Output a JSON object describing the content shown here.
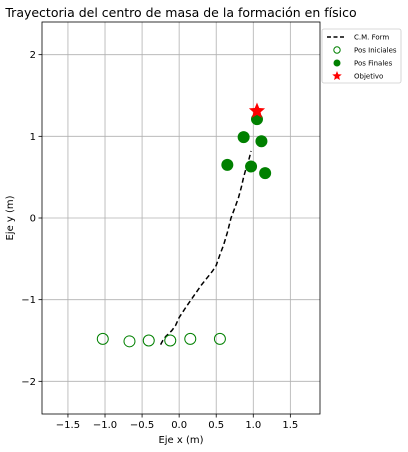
{
  "chart_data": {
    "type": "scatter",
    "title": "Trayectoria del centro de masa de la formación en físico",
    "xlabel": "Eje x (m)",
    "ylabel": "Eje y (m)",
    "xlim": [
      -1.85,
      1.9
    ],
    "ylim": [
      -2.4,
      2.4
    ],
    "xticks": [
      -1.5,
      -1.0,
      -0.5,
      0.0,
      0.5,
      1.0,
      1.5
    ],
    "xtick_labels": [
      "−1.5",
      "−1.0",
      "−0.5",
      "0.0",
      "0.5",
      "1.0",
      "1.5"
    ],
    "yticks": [
      -2,
      -1,
      0,
      1,
      2
    ],
    "ytick_labels": [
      "−2",
      "−1",
      "0",
      "1",
      "2"
    ],
    "grid": true,
    "legend_position": "outside-top-right",
    "series": [
      {
        "name": "C.M. Form",
        "kind": "line",
        "style": "dashed",
        "color": "#000000",
        "x": [
          -0.25,
          -0.22,
          -0.18,
          -0.1,
          -0.05,
          0.0,
          0.1,
          0.2,
          0.3,
          0.45,
          0.5,
          0.55,
          0.6,
          0.65,
          0.7,
          0.75,
          0.8,
          0.84,
          0.87,
          0.9,
          0.93,
          0.95,
          0.97
        ],
        "y": [
          -1.55,
          -1.5,
          -1.45,
          -1.38,
          -1.32,
          -1.22,
          -1.08,
          -0.95,
          -0.82,
          -0.65,
          -0.58,
          -0.45,
          -0.33,
          -0.18,
          0.0,
          0.12,
          0.25,
          0.38,
          0.5,
          0.6,
          0.68,
          0.75,
          0.82
        ]
      },
      {
        "name": "Pos Iniciales",
        "kind": "scatter",
        "marker": "open-circle",
        "color": "#008000",
        "x": [
          -1.03,
          -0.67,
          -0.41,
          -0.12,
          0.15,
          0.55
        ],
        "y": [
          -1.48,
          -1.51,
          -1.5,
          -1.5,
          -1.48,
          -1.48
        ]
      },
      {
        "name": "Pos Finales",
        "kind": "scatter",
        "marker": "filled-circle",
        "color": "#008000",
        "x": [
          1.05,
          0.87,
          1.11,
          0.65,
          0.97,
          1.16
        ],
        "y": [
          1.21,
          0.99,
          0.94,
          0.65,
          0.63,
          0.55
        ]
      },
      {
        "name": "Objetivo",
        "kind": "scatter",
        "marker": "star",
        "color": "#ff0000",
        "x": [
          1.05
        ],
        "y": [
          1.31
        ]
      }
    ]
  }
}
